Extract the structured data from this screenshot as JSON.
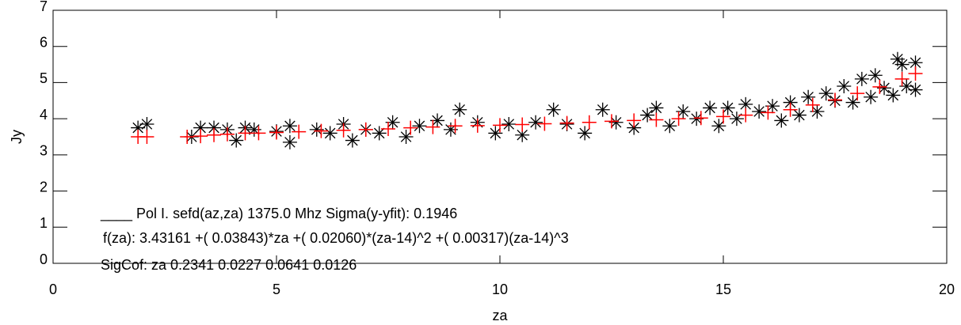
{
  "chart_data": {
    "type": "scatter",
    "xlabel": "za",
    "ylabel": "Jy",
    "xlim": [
      0,
      20
    ],
    "ylim": [
      0,
      7
    ],
    "xticks": [
      0,
      5,
      10,
      15,
      20
    ],
    "yticks": [
      0,
      1,
      2,
      3,
      4,
      5,
      6,
      7
    ],
    "annotations": [
      "____ Pol I. sefd(az,za) 1375.0 Mhz Sigma(y-yfit): 0.1946",
      "f(za):  3.43161 +( 0.03843)*za +( 0.02060)*(za-14)^2 +( 0.00317)(za-14)^3",
      "SigCof: za   0.2341  0.0227  0.0641  0.0126"
    ],
    "series": [
      {
        "color": "#000000",
        "marker": "asterisk",
        "x": [
          1.9,
          2.1,
          3.1,
          3.3,
          3.6,
          3.9,
          4.1,
          4.3,
          4.5,
          5.0,
          5.3,
          5.3,
          5.9,
          6.2,
          6.5,
          6.7,
          7.0,
          7.3,
          7.6,
          7.9,
          8.2,
          8.6,
          8.9,
          9.1,
          9.5,
          9.9,
          10.2,
          10.5,
          10.8,
          11.2,
          11.5,
          11.9,
          12.3,
          12.6,
          13.0,
          13.3,
          13.5,
          13.8,
          14.1,
          14.4,
          14.7,
          14.9,
          15.1,
          15.3,
          15.5,
          15.8,
          16.1,
          16.3,
          16.5,
          16.7,
          16.9,
          17.1,
          17.3,
          17.5,
          17.7,
          17.9,
          18.1,
          18.3,
          18.4,
          18.6,
          18.8,
          18.9,
          19.0,
          19.1,
          19.3,
          19.3
        ],
        "values": [
          3.75,
          3.85,
          3.5,
          3.75,
          3.75,
          3.7,
          3.4,
          3.75,
          3.7,
          3.65,
          3.35,
          3.8,
          3.7,
          3.6,
          3.85,
          3.4,
          3.7,
          3.6,
          3.9,
          3.5,
          3.8,
          3.95,
          3.7,
          4.25,
          3.9,
          3.6,
          3.85,
          3.55,
          3.9,
          4.25,
          3.85,
          3.6,
          4.25,
          3.9,
          3.75,
          4.1,
          4.3,
          3.8,
          4.2,
          4.0,
          4.3,
          3.8,
          4.3,
          4.0,
          4.4,
          4.2,
          4.35,
          3.95,
          4.45,
          4.1,
          4.6,
          4.2,
          4.7,
          4.5,
          4.9,
          4.45,
          5.1,
          4.6,
          5.2,
          4.85,
          4.65,
          5.65,
          5.5,
          4.9,
          5.55,
          4.8
        ]
      },
      {
        "color": "#ff0000",
        "marker": "plus",
        "x": [
          1.9,
          2.1,
          3.0,
          3.3,
          3.6,
          3.9,
          4.3,
          4.6,
          5.0,
          5.5,
          6.0,
          6.5,
          7.0,
          7.5,
          8.0,
          8.5,
          9.0,
          9.5,
          10.0,
          10.5,
          11.0,
          11.5,
          12.0,
          12.5,
          13.0,
          13.5,
          14.0,
          14.5,
          15.0,
          15.5,
          16.0,
          16.5,
          17.0,
          17.5,
          18.0,
          18.5,
          19.0,
          19.3
        ],
        "values": [
          3.5,
          3.5,
          3.5,
          3.52,
          3.55,
          3.57,
          3.6,
          3.6,
          3.62,
          3.64,
          3.66,
          3.68,
          3.7,
          3.72,
          3.75,
          3.77,
          3.8,
          3.81,
          3.82,
          3.84,
          3.86,
          3.88,
          3.9,
          3.93,
          3.95,
          3.97,
          4.0,
          4.02,
          4.06,
          4.1,
          4.17,
          4.25,
          4.38,
          4.52,
          4.7,
          4.88,
          5.1,
          5.25
        ]
      }
    ]
  }
}
